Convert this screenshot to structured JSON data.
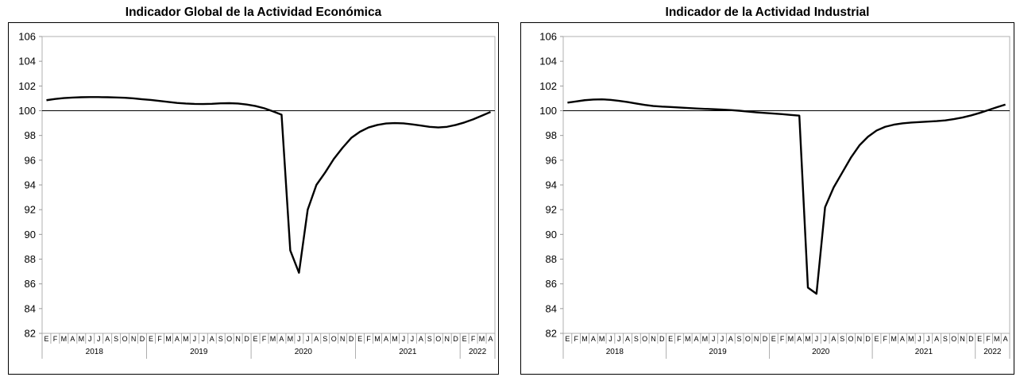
{
  "chart_data": [
    {
      "type": "line",
      "title": "Indicador Global de la Actividad Económica",
      "xlabel": "",
      "ylabel": "",
      "ylim": [
        82,
        106
      ],
      "yticks": [
        82,
        84,
        86,
        88,
        90,
        92,
        94,
        96,
        98,
        100,
        102,
        104,
        106
      ],
      "reference_line": 100,
      "grid": false,
      "month_labels": [
        "E",
        "F",
        "M",
        "A",
        "M",
        "J",
        "J",
        "A",
        "S",
        "O",
        "N",
        "D",
        "E",
        "F",
        "M",
        "A",
        "M",
        "J",
        "J",
        "A",
        "S",
        "O",
        "N",
        "D",
        "E",
        "F",
        "M",
        "A",
        "M",
        "J",
        "J",
        "A",
        "S",
        "O",
        "N",
        "D",
        "E",
        "F",
        "M",
        "A",
        "M",
        "J",
        "J",
        "A",
        "S",
        "O",
        "N",
        "D",
        "E",
        "F",
        "M",
        "A"
      ],
      "year_labels": [
        "2018",
        "2019",
        "2020",
        "2021",
        "2022"
      ],
      "series": [
        {
          "values": [
            100.85,
            100.95,
            101.02,
            101.06,
            101.09,
            101.1,
            101.1,
            101.09,
            101.07,
            101.05,
            101.0,
            100.93,
            100.87,
            100.79,
            100.71,
            100.63,
            100.58,
            100.55,
            100.54,
            100.56,
            100.6,
            100.61,
            100.58,
            100.5,
            100.38,
            100.2,
            99.95,
            99.68,
            88.7,
            86.9,
            92.0,
            94.0,
            95.0,
            96.1,
            97.0,
            97.8,
            98.3,
            98.65,
            98.85,
            98.97,
            99.0,
            98.98,
            98.9,
            98.8,
            98.7,
            98.65,
            98.7,
            98.85,
            99.05,
            99.3,
            99.6,
            99.9
          ]
        }
      ]
    },
    {
      "type": "line",
      "title": "Indicador de la Actividad Industrial",
      "xlabel": "",
      "ylabel": "",
      "ylim": [
        82,
        106
      ],
      "yticks": [
        82,
        84,
        86,
        88,
        90,
        92,
        94,
        96,
        98,
        100,
        102,
        104,
        106
      ],
      "reference_line": 100,
      "grid": false,
      "month_labels": [
        "E",
        "F",
        "M",
        "A",
        "M",
        "J",
        "J",
        "A",
        "S",
        "O",
        "N",
        "D",
        "E",
        "F",
        "M",
        "A",
        "M",
        "J",
        "J",
        "A",
        "S",
        "O",
        "N",
        "D",
        "E",
        "F",
        "M",
        "A",
        "M",
        "J",
        "J",
        "A",
        "S",
        "O",
        "N",
        "D",
        "E",
        "F",
        "M",
        "A",
        "M",
        "J",
        "J",
        "A",
        "S",
        "O",
        "N",
        "D",
        "E",
        "F",
        "M",
        "A"
      ],
      "year_labels": [
        "2018",
        "2019",
        "2020",
        "2021",
        "2022"
      ],
      "series": [
        {
          "values": [
            100.65,
            100.75,
            100.85,
            100.9,
            100.92,
            100.88,
            100.8,
            100.7,
            100.58,
            100.47,
            100.38,
            100.33,
            100.3,
            100.26,
            100.22,
            100.18,
            100.15,
            100.12,
            100.09,
            100.05,
            100.0,
            99.93,
            99.87,
            99.82,
            99.77,
            99.72,
            99.66,
            99.6,
            85.7,
            85.2,
            92.2,
            93.8,
            95.0,
            96.2,
            97.2,
            97.9,
            98.4,
            98.7,
            98.87,
            98.98,
            99.04,
            99.08,
            99.12,
            99.16,
            99.22,
            99.32,
            99.45,
            99.62,
            99.82,
            100.05,
            100.28,
            100.5
          ]
        }
      ]
    }
  ]
}
